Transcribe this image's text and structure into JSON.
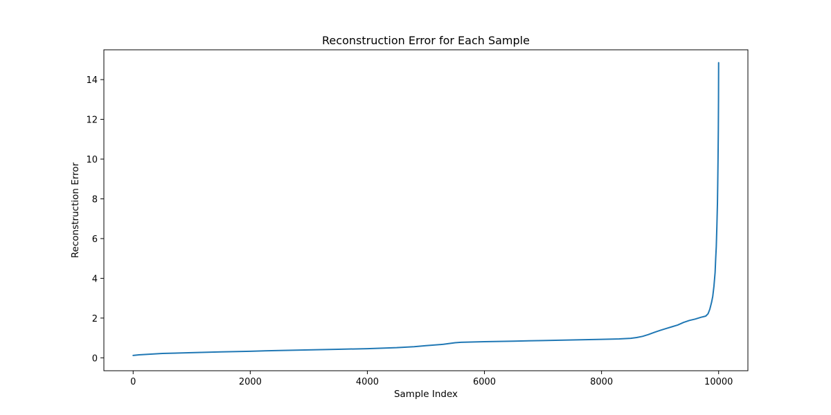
{
  "chart_data": {
    "type": "line",
    "title": "Reconstruction Error for Each Sample",
    "xlabel": "Sample Index",
    "ylabel": "Reconstruction Error",
    "xlim": [
      -500,
      10500
    ],
    "ylim": [
      -0.65,
      15.5
    ],
    "xticks": [
      0,
      2000,
      4000,
      6000,
      8000,
      10000
    ],
    "xtick_labels": [
      "0",
      "2000",
      "4000",
      "6000",
      "8000",
      "10000"
    ],
    "yticks": [
      0,
      2,
      4,
      6,
      8,
      10,
      12,
      14
    ],
    "ytick_labels": [
      "0",
      "2",
      "4",
      "6",
      "8",
      "10",
      "12",
      "14"
    ],
    "grid": false,
    "legend": "none",
    "colors": {
      "series": "#1f77b4",
      "axes": "#000000",
      "background": "#ffffff"
    },
    "series": [
      {
        "x": [
          0,
          100,
          200,
          500,
          1000,
          1500,
          2000,
          2500,
          3000,
          3500,
          4000,
          4500,
          4800,
          5000,
          5300,
          5500,
          5600,
          6000,
          6500,
          7000,
          7500,
          8000,
          8300,
          8500,
          8600,
          8700,
          8800,
          8900,
          9000,
          9100,
          9200,
          9300,
          9400,
          9500,
          9600,
          9700,
          9780,
          9820,
          9850,
          9880,
          9900,
          9920,
          9940,
          9950,
          9960,
          9970,
          9980,
          9985,
          9990,
          9995,
          9998,
          10000
        ],
        "y": [
          0.12,
          0.15,
          0.17,
          0.22,
          0.26,
          0.3,
          0.33,
          0.37,
          0.4,
          0.43,
          0.46,
          0.51,
          0.56,
          0.61,
          0.68,
          0.76,
          0.78,
          0.81,
          0.84,
          0.87,
          0.9,
          0.93,
          0.95,
          0.98,
          1.02,
          1.08,
          1.17,
          1.28,
          1.38,
          1.47,
          1.56,
          1.65,
          1.78,
          1.88,
          1.95,
          2.04,
          2.1,
          2.22,
          2.45,
          2.8,
          3.1,
          3.6,
          4.3,
          5.0,
          5.6,
          6.6,
          7.8,
          8.8,
          10.0,
          11.5,
          13.0,
          14.85
        ]
      }
    ]
  }
}
